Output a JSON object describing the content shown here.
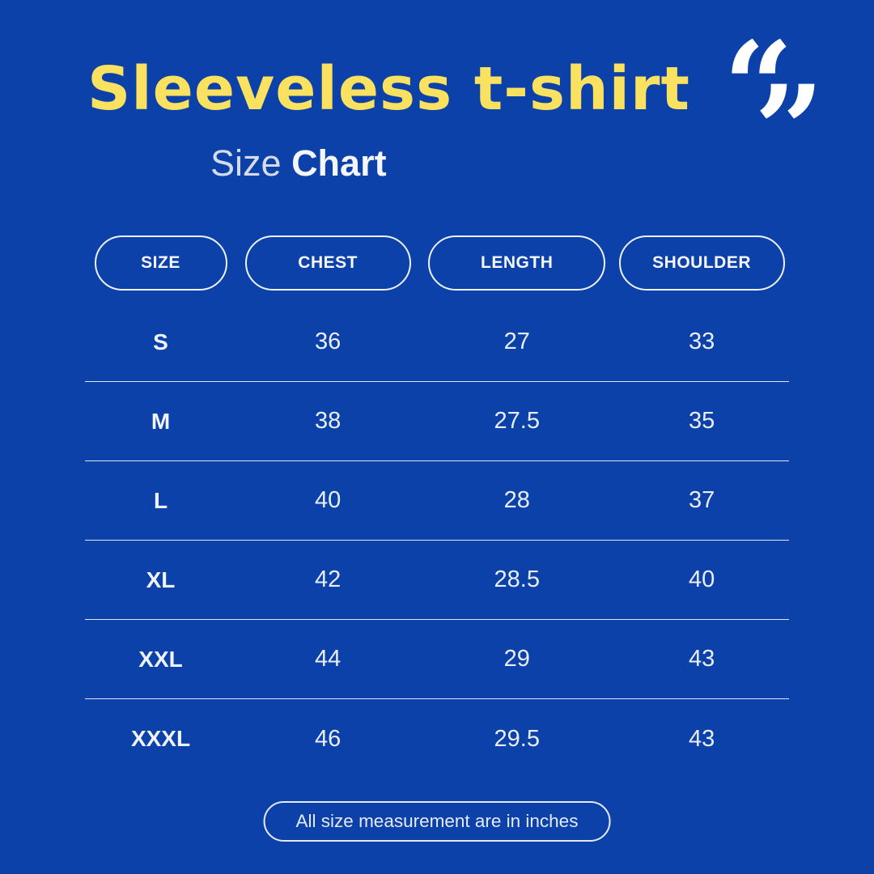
{
  "page": {
    "background_color": "#0b41a8",
    "accent_yellow": "#fae15f",
    "text_color": "#e9eef6"
  },
  "header": {
    "title": "Sleeveless t-shirt",
    "subtitle_regular": "Size",
    "subtitle_bold": "Chart",
    "quote_icon": {
      "open": "“",
      "close": "”"
    }
  },
  "chart_data": {
    "type": "table",
    "title": "Sleeveless t-shirt Size Chart",
    "columns": [
      "SIZE",
      "CHEST",
      "LENGTH",
      "SHOULDER"
    ],
    "rows": [
      [
        "S",
        "36",
        "27",
        "33"
      ],
      [
        "M",
        "38",
        "27.5",
        "35"
      ],
      [
        "L",
        "40",
        "28",
        "37"
      ],
      [
        "XL",
        "42",
        "28.5",
        "40"
      ],
      [
        "XXL",
        "44",
        "29",
        "43"
      ],
      [
        "XXXL",
        "46",
        "29.5",
        "43"
      ]
    ],
    "units": "inches"
  },
  "footer": {
    "note": "All size measurement are in inches"
  }
}
